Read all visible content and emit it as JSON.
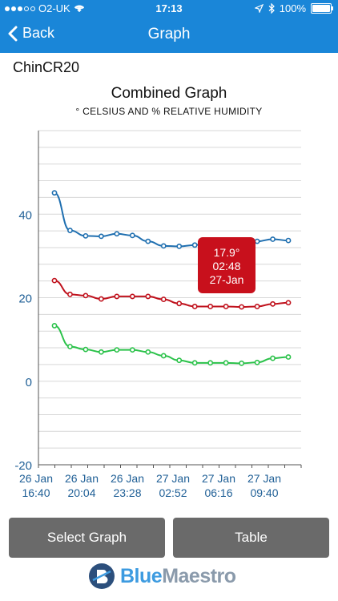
{
  "status_bar": {
    "carrier": "O2-UK",
    "time": "17:13",
    "battery": "100%"
  },
  "nav": {
    "back_label": "Back",
    "title": "Graph"
  },
  "device_name": "ChinCR20",
  "graph": {
    "title": "Combined Graph",
    "subtitle": "° CELSIUS AND % RELATIVE HUMIDITY"
  },
  "chart_data": {
    "type": "line",
    "title": "Combined Graph",
    "subtitle": "° CELSIUS AND % RELATIVE HUMIDITY",
    "ylim": [
      -20,
      60
    ],
    "y_ticks": [
      "40",
      "20",
      "0",
      "-20"
    ],
    "x_ticks": [
      {
        "date": "26 Jan",
        "time": "16:40"
      },
      {
        "date": "26 Jan",
        "time": "20:04"
      },
      {
        "date": "26 Jan",
        "time": "23:28"
      },
      {
        "date": "27 Jan",
        "time": "02:52"
      },
      {
        "date": "27 Jan",
        "time": "06:16"
      },
      {
        "date": "27 Jan",
        "time": "09:40"
      }
    ],
    "series": [
      {
        "color": "#1f6fb0",
        "values": [
          45.1,
          36.1,
          34.8,
          34.7,
          35.3,
          34.9,
          33.5,
          32.4,
          32.3,
          32.6,
          33.5,
          33.5,
          33.3,
          33.5,
          34.0,
          33.7
        ]
      },
      {
        "color": "#c0121d",
        "values": [
          24.1,
          20.8,
          20.5,
          19.7,
          20.3,
          20.3,
          20.3,
          19.6,
          18.6,
          17.9,
          17.9,
          17.9,
          17.8,
          17.9,
          18.5,
          18.8
        ]
      },
      {
        "color": "#2bc24a",
        "values": [
          13.3,
          8.3,
          7.6,
          7.0,
          7.5,
          7.5,
          7.0,
          6.1,
          5.0,
          4.4,
          4.4,
          4.4,
          4.3,
          4.5,
          5.5,
          5.8
        ]
      }
    ],
    "tooltip": {
      "value": "17.9°",
      "time": "02:48",
      "date": "27-Jan",
      "color": "#c8101c"
    }
  },
  "buttons": {
    "select_graph": "Select Graph",
    "table": "Table"
  },
  "logo": {
    "blue": "Blue",
    "maestro": "Maestro"
  }
}
